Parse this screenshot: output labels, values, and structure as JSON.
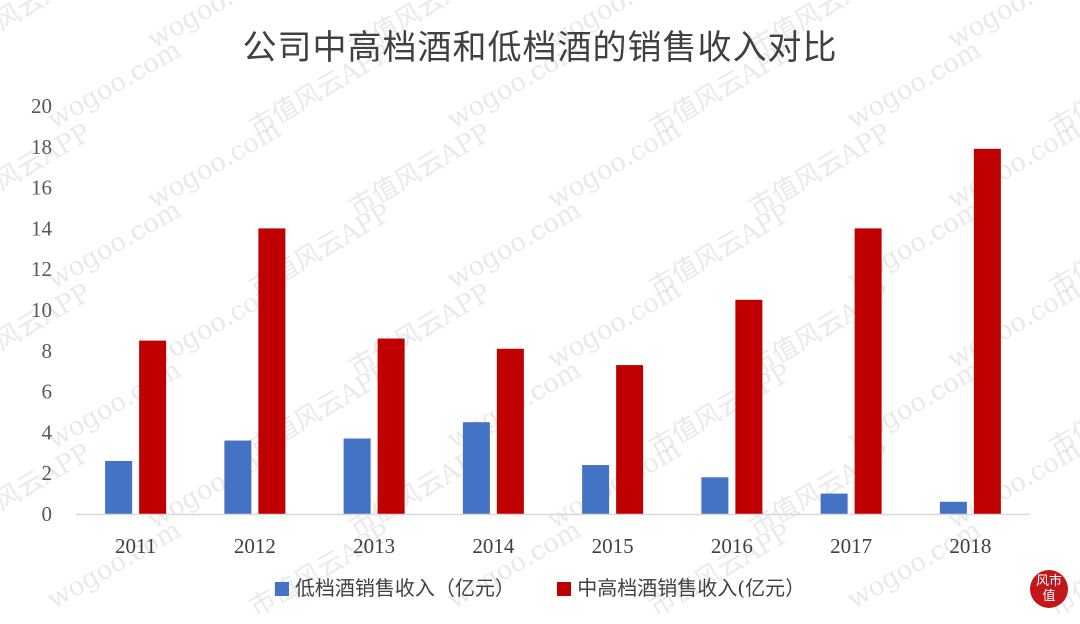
{
  "chart_data": {
    "type": "bar",
    "title": "公司中高档酒和低档酒的销售收入对比",
    "categories": [
      "2011",
      "2012",
      "2013",
      "2014",
      "2015",
      "2016",
      "2017",
      "2018"
    ],
    "series": [
      {
        "name": "低档酒销售收入（亿元）",
        "color": "#4472c4",
        "values": [
          2.6,
          3.6,
          3.7,
          4.5,
          2.4,
          1.8,
          1.0,
          0.6
        ]
      },
      {
        "name": "中高档酒销售收入(亿元）",
        "color": "#c00000",
        "values": [
          8.5,
          14.0,
          8.6,
          8.1,
          7.3,
          10.5,
          14.0,
          17.9
        ]
      }
    ],
    "ylim": [
      0,
      20
    ],
    "yticks": [
      "0",
      "2",
      "4",
      "6",
      "8",
      "10",
      "12",
      "14",
      "16",
      "18",
      "20"
    ],
    "legend": "bottom",
    "grid": false
  },
  "watermarks": [
    "市值风云APP",
    "wogoo.com"
  ],
  "logo_text": "风市值"
}
